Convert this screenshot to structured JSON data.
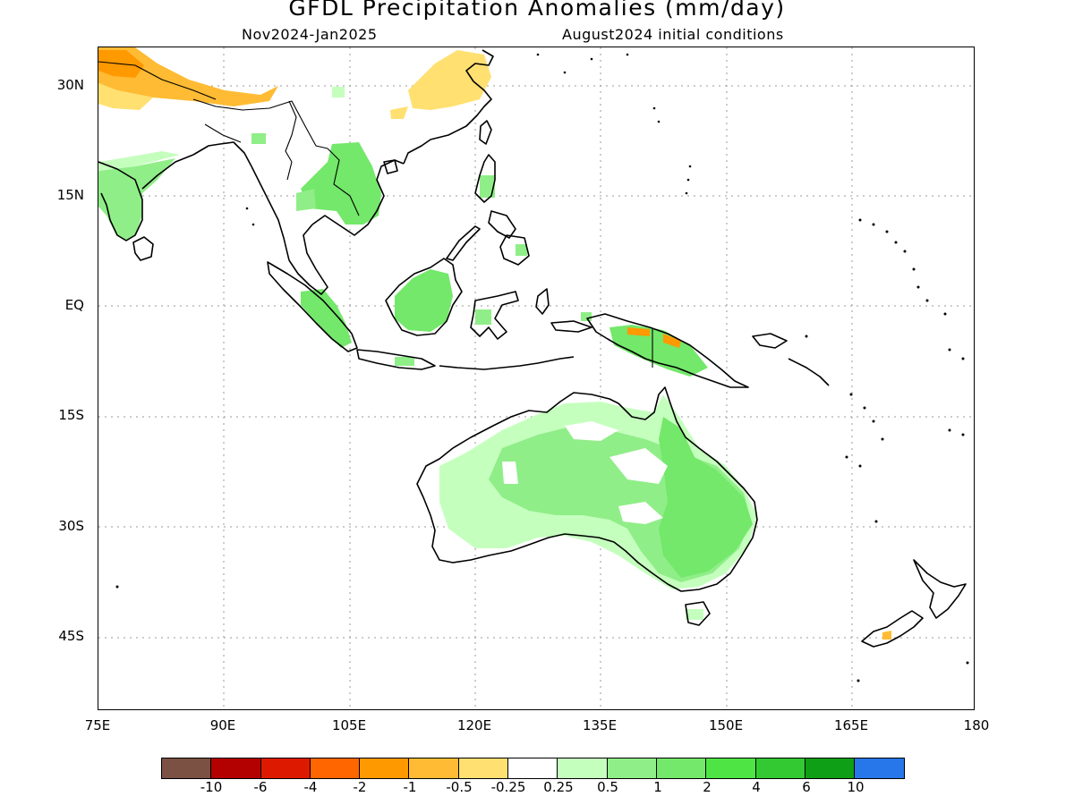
{
  "title": "GFDL Precipitation Anomalies (mm/day)",
  "subtitle_left": "Nov2024-Jan2025",
  "subtitle_right": "August2024 initial conditions",
  "lat_labels": [
    "30N",
    "15N",
    "EQ",
    "15S",
    "30S",
    "45S"
  ],
  "lon_labels": [
    "75E",
    "90E",
    "105E",
    "120E",
    "135E",
    "150E",
    "165E",
    "180"
  ],
  "colorbar": {
    "colors": [
      "#7a5143",
      "#b30000",
      "#dd1a00",
      "#ff6600",
      "#ff9900",
      "#ffbb33",
      "#ffe070",
      "#ffffff",
      "#c5ffbe",
      "#90ee88",
      "#73e86a",
      "#4ee544",
      "#33c933",
      "#0f9f16",
      "#2877ea"
    ],
    "labels": [
      "-10",
      "-6",
      "-4",
      "-2",
      "-1",
      "-0.5",
      "-0.25",
      "0.25",
      "0.5",
      "1",
      "2",
      "4",
      "6",
      "10"
    ]
  },
  "anomaly_colors": {
    "dry_light": "#ffe070",
    "dry_medium": "#ffbb33",
    "dry_strong": "#ff9900",
    "wet_light": "#c5ffbe",
    "wet_medium": "#90ee88",
    "wet_strong": "#73e86a"
  }
}
